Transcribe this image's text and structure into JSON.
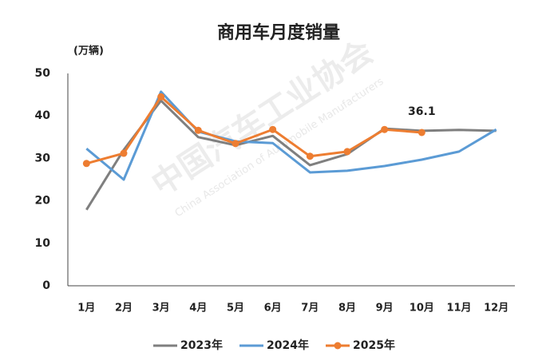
{
  "chart_data": {
    "type": "line",
    "title": "商用车月度销量",
    "y_label": "(万辆)",
    "watermark": [
      "中国汽车工业协会",
      "China Association of Automobile Manufacturers"
    ],
    "categories": [
      "1月",
      "2月",
      "3月",
      "4月",
      "5月",
      "6月",
      "7月",
      "8月",
      "9月",
      "10月",
      "11月",
      "12月"
    ],
    "series": [
      {
        "name": "2023年",
        "color": "#7f7f7f",
        "marker": false,
        "values": [
          17.9,
          32,
          43.6,
          35,
          33.1,
          35.3,
          28.4,
          31,
          37,
          36.5,
          36.7,
          36.5
        ]
      },
      {
        "name": "2024年",
        "color": "#5b9bd5",
        "marker": false,
        "values": [
          32.3,
          25,
          45.7,
          36.3,
          34,
          33.6,
          26.7,
          27.1,
          28.2,
          29.7,
          31.6,
          36.8
        ]
      },
      {
        "name": "2025年",
        "color": "#ed7d31",
        "marker": true,
        "values": [
          28.8,
          31.2,
          44.5,
          36.6,
          33.5,
          36.8,
          30.5,
          31.6,
          36.8,
          36.1,
          null,
          null
        ]
      }
    ],
    "ylim": [
      0,
      50
    ],
    "yticks": [
      0,
      10,
      20,
      30,
      40,
      50
    ],
    "grid": false,
    "legend": "bottom"
  }
}
